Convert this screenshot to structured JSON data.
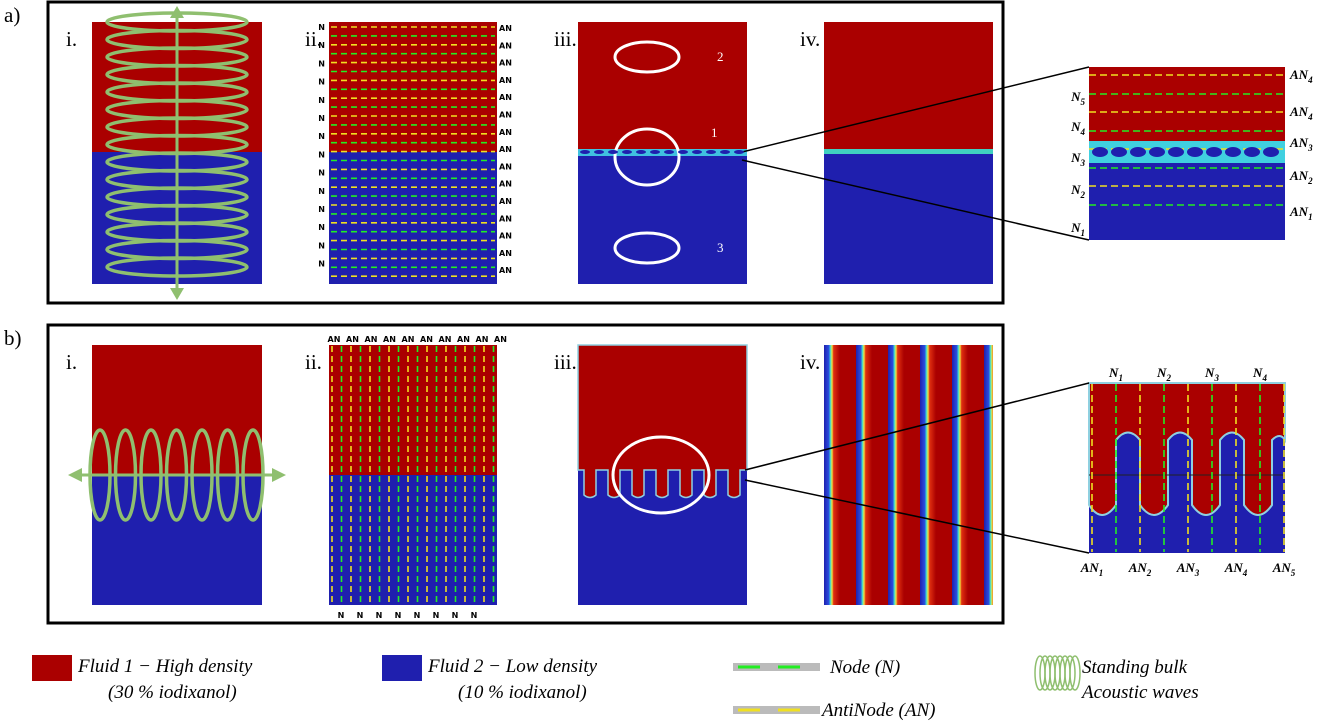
{
  "panel_a": {
    "label": "a)",
    "sublabels": [
      "i.",
      "ii.",
      "iii.",
      "iv."
    ],
    "nodes_left": [
      "N",
      "N",
      "N",
      "N",
      "N",
      "N",
      "N",
      "N",
      "N",
      "N",
      "N",
      "N",
      "N",
      "N"
    ],
    "antinodes_right": [
      "AN",
      "AN",
      "AN",
      "AN",
      "AN",
      "AN",
      "AN",
      "AN",
      "AN",
      "AN",
      "AN",
      "AN",
      "AN",
      "AN",
      "AN"
    ],
    "circle_labels": [
      "1",
      "2",
      "3"
    ],
    "zoom_right": [
      {
        "base": "AN",
        "sub": "4"
      },
      {
        "base": "AN",
        "sub": "4"
      },
      {
        "base": "AN",
        "sub": "3"
      },
      {
        "base": "AN",
        "sub": "2"
      },
      {
        "base": "AN",
        "sub": "1"
      }
    ],
    "zoom_left": [
      {
        "base": "N",
        "sub": "5"
      },
      {
        "base": "N",
        "sub": "4"
      },
      {
        "base": "N",
        "sub": "3"
      },
      {
        "base": "N",
        "sub": "2"
      },
      {
        "base": "N",
        "sub": "1"
      }
    ]
  },
  "panel_b": {
    "label": "b)",
    "sublabels": [
      "i.",
      "ii.",
      "iii.",
      "iv."
    ],
    "antinodes_top": [
      "AN",
      "AN",
      "AN",
      "AN",
      "AN",
      "AN",
      "AN",
      "AN",
      "AN",
      "AN"
    ],
    "nodes_bottom": [
      "N",
      "N",
      "N",
      "N",
      "N",
      "N",
      "N",
      "N"
    ],
    "zoom_top": [
      {
        "base": "N",
        "sub": "1"
      },
      {
        "base": "N",
        "sub": "2"
      },
      {
        "base": "N",
        "sub": "3"
      },
      {
        "base": "N",
        "sub": "4"
      }
    ],
    "zoom_bottom": [
      {
        "base": "AN",
        "sub": "1"
      },
      {
        "base": "AN",
        "sub": "2"
      },
      {
        "base": "AN",
        "sub": "3"
      },
      {
        "base": "AN",
        "sub": "4"
      },
      {
        "base": "AN",
        "sub": "5"
      }
    ]
  },
  "legend": {
    "fluid1": [
      "Fluid 1 − High density",
      "(30 % iodixanol)"
    ],
    "fluid2": [
      "Fluid 2 − Low density",
      "(10 % iodixanol)"
    ],
    "node": "Node (N)",
    "antinode": "AntiNode (AN)",
    "waves": [
      "Standing bulk",
      "Acoustic waves"
    ]
  }
}
